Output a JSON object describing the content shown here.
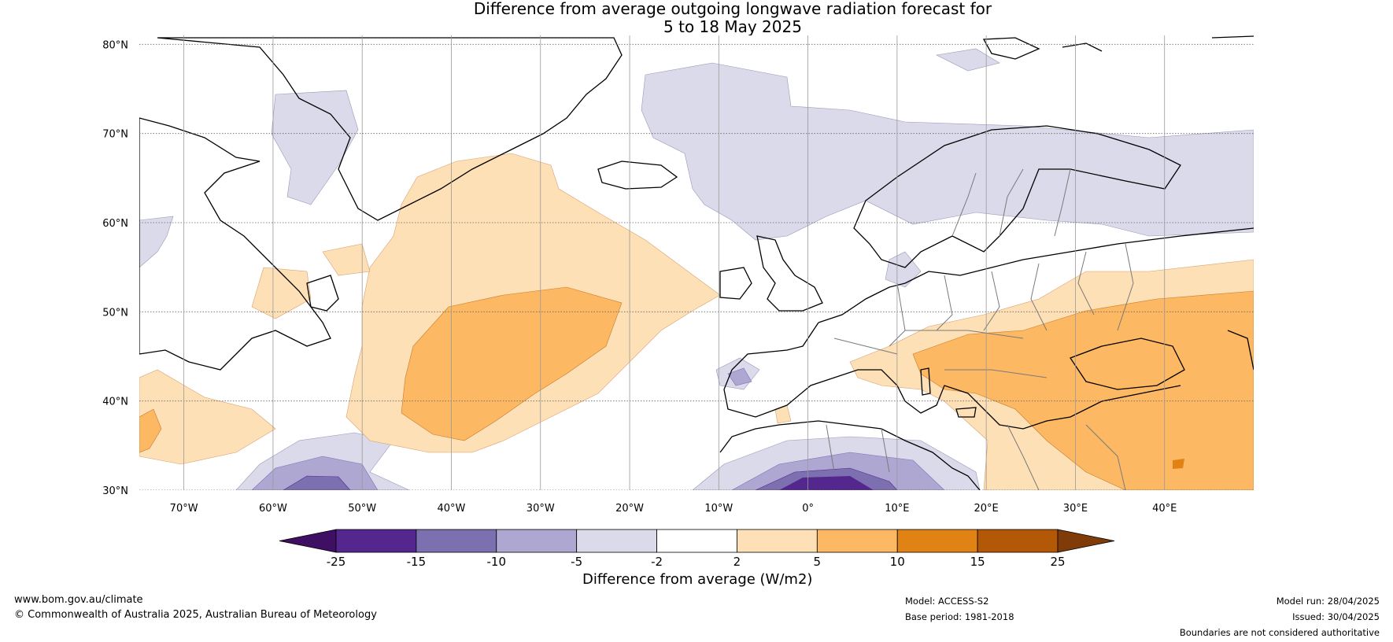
{
  "title": {
    "line1": "Difference from average outgoing longwave radiation forecast for",
    "line2": "5 to 18 May 2025"
  },
  "map": {
    "lon_range": [
      -75,
      50
    ],
    "lat_range": [
      30,
      81
    ],
    "lat_labels": [
      "30°N",
      "40°N",
      "50°N",
      "60°N",
      "70°N",
      "80°N"
    ],
    "lat_values": [
      30,
      40,
      50,
      60,
      70,
      80
    ],
    "lon_labels": [
      "70°W",
      "60°W",
      "50°W",
      "40°W",
      "30°W",
      "20°W",
      "10°W",
      "0°",
      "10°E",
      "20°E",
      "30°E",
      "40°E"
    ],
    "lon_values": [
      -70,
      -60,
      -50,
      -40,
      -30,
      -20,
      -10,
      0,
      10,
      20,
      30,
      40
    ],
    "grid": true
  },
  "colorbar": {
    "label": "Difference from average (W/m2)",
    "ticks": [
      "-25",
      "-15",
      "-10",
      "-5",
      "-2",
      "2",
      "5",
      "10",
      "15",
      "25"
    ],
    "colors": [
      "#3f0f63",
      "#54278f",
      "#7d70b0",
      "#ada7d2",
      "#dadaeb",
      "#ffffff",
      "#fee0b6",
      "#fdb863",
      "#e08214",
      "#b35806",
      "#7f3b08"
    ]
  },
  "footer": {
    "url": "www.bom.gov.au/climate",
    "copyright": "© Commonwealth of Australia 2025, Australian Bureau of Meteorology",
    "model": "Model: ACCESS-S2",
    "base_period": "Base period: 1981-2018",
    "model_run": "Model run: 28/04/2025",
    "issued": "Issued: 30/04/2025",
    "disclaimer": "Boundaries are not considered authoritative"
  }
}
